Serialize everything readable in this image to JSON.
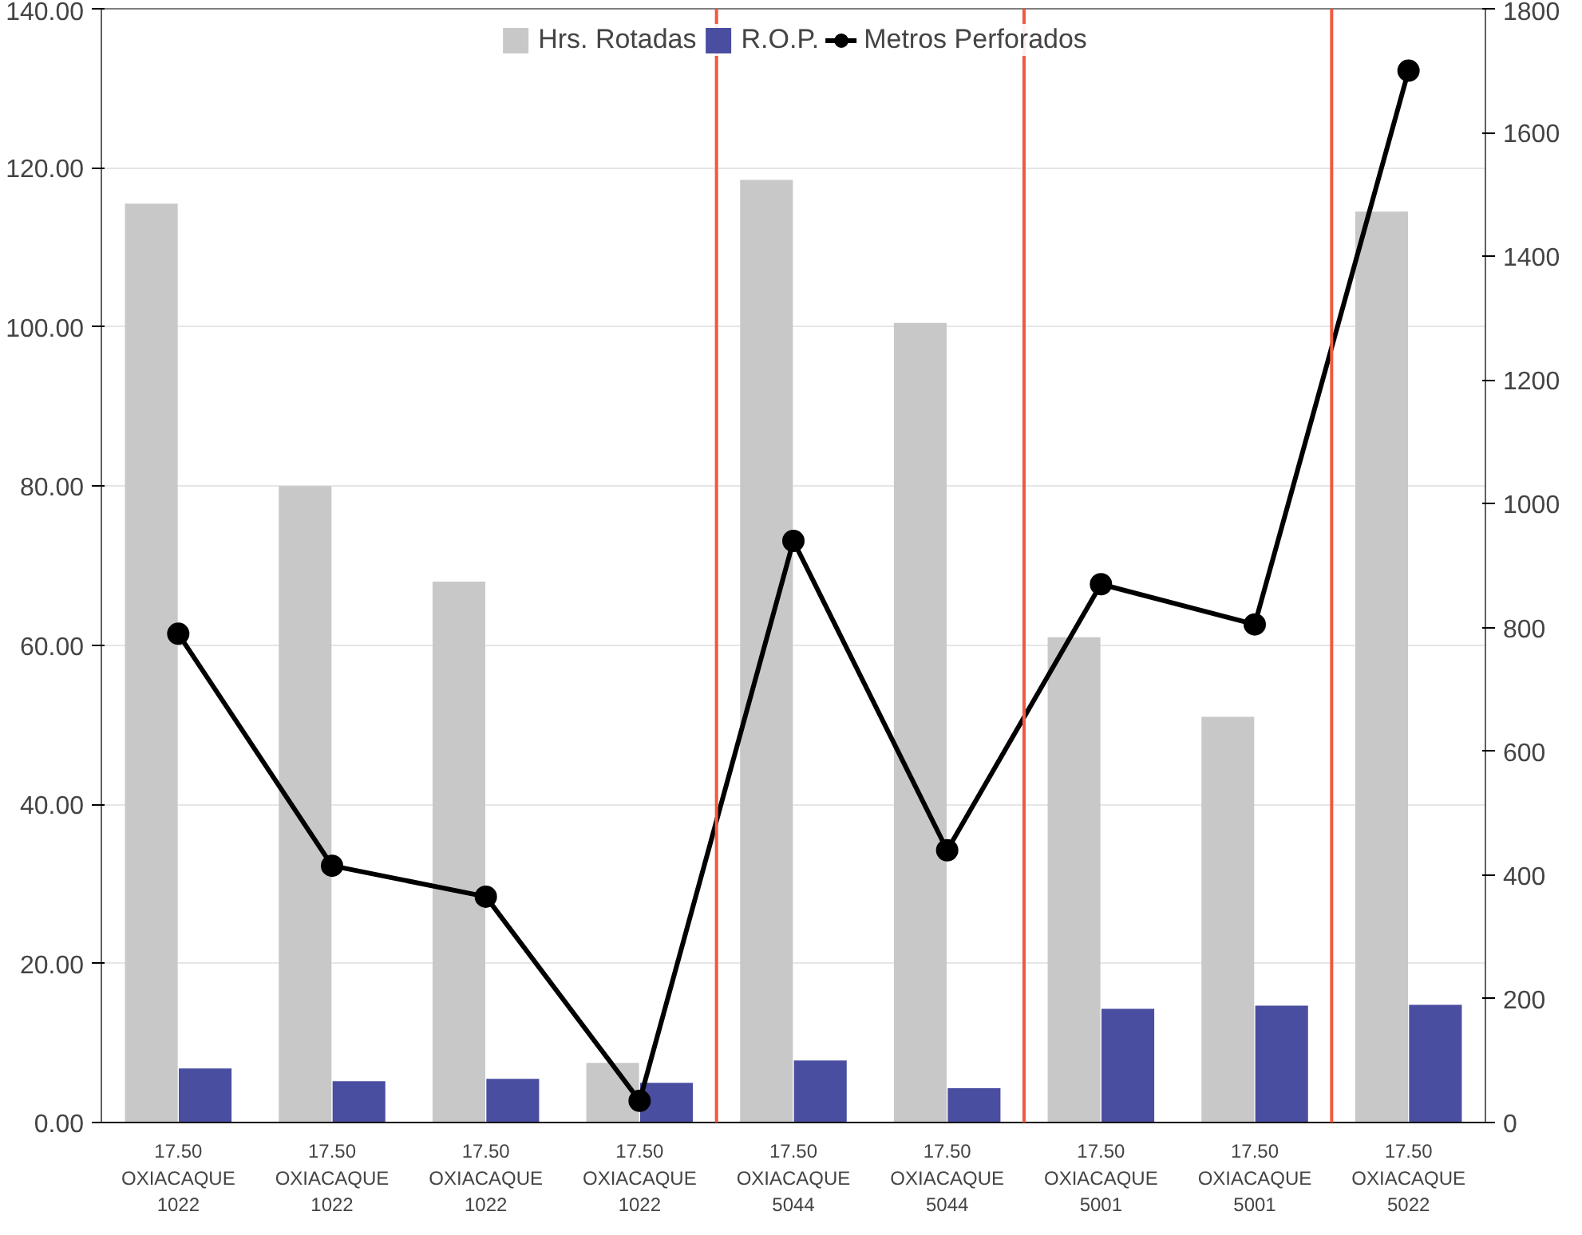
{
  "chart_data": {
    "type": "bar",
    "categories": [
      "17.50 OXIACAQUE 1022",
      "17.50 OXIACAQUE 1022",
      "17.50 OXIACAQUE 1022",
      "17.50 OXIACAQUE 1022",
      "17.50 OXIACAQUE 5044",
      "17.50 OXIACAQUE 5044",
      "17.50 OXIACAQUE 5001",
      "17.50 OXIACAQUE 5001",
      "17.50 OXIACAQUE 5022"
    ],
    "series": [
      {
        "name": "Hrs. Rotadas",
        "color": "#c8c8c8",
        "values": [
          115.5,
          80,
          68,
          7.5,
          118.5,
          100.5,
          61,
          51,
          114.5
        ]
      },
      {
        "name": "R.O.P.",
        "color": "#4a4ea0",
        "values": [
          6.8,
          5.2,
          5.5,
          5.0,
          7.8,
          4.3,
          14.3,
          14.7,
          14.8
        ]
      },
      {
        "name": "Metros Perforados",
        "type": "line",
        "axis": "y2",
        "color": "#000000",
        "marker": "circle",
        "values": [
          790,
          415,
          365,
          35,
          940,
          440,
          870,
          805,
          1700
        ]
      }
    ],
    "ylim": [
      0,
      140
    ],
    "yticks": [
      {
        "value": 0,
        "label": "0.00"
      },
      {
        "value": 20,
        "label": "20.00"
      },
      {
        "value": 40,
        "label": "40.00"
      },
      {
        "value": 60,
        "label": "60.00"
      },
      {
        "value": 80,
        "label": "80.00"
      },
      {
        "value": 100,
        "label": "100.00"
      },
      {
        "value": 120,
        "label": "120.00"
      },
      {
        "value": 140,
        "label": "140.00"
      }
    ],
    "y2lim": [
      0,
      1800
    ],
    "y2ticks": [
      0,
      200,
      400,
      600,
      800,
      1000,
      1200,
      1400,
      1600,
      1800
    ],
    "grid": "y",
    "legend": "top"
  }
}
